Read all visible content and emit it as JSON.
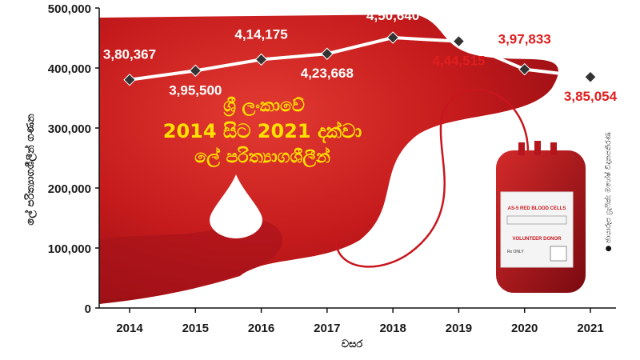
{
  "chart_data": {
    "type": "line",
    "title_lines": [
      "ශ්‍රී ලංකාවේ",
      "2014 සිට 2021 දක්වා",
      "ලේ පරිත්‍යාගශීලීන්"
    ],
    "xlabel": "වසර",
    "ylabel": "ලේ පරිත්‍යාගශීලීන් ගණන",
    "categories": [
      "2014",
      "2015",
      "2016",
      "2017",
      "2018",
      "2019",
      "2020",
      "2021"
    ],
    "values": [
      380367,
      395500,
      414175,
      423668,
      450640,
      444515,
      397833,
      385054
    ],
    "value_labels": [
      "3,80,367",
      "3,95,500",
      "4,14,175",
      "4,23,668",
      "4,50,640",
      "4,44,515",
      "3,97,833",
      "3,85,054"
    ],
    "ylim": [
      0,
      500000
    ],
    "yticks": [
      0,
      100000,
      200000,
      300000,
      400000,
      500000
    ],
    "ytick_labels": [
      "0",
      "100,000",
      "200,000",
      "300,000",
      "400,000",
      "500,000"
    ],
    "grid": false,
    "colors": {
      "line": "#ffffff",
      "marker": "#333333",
      "label_on_red": "#ffffff",
      "label_on_white": "#e01e1e",
      "headline": "#ffe000",
      "blood": "#b5101a"
    },
    "blood_bag_label": [
      "AS-5 RED BLOOD CELLS",
      "VOLUNTEER DONOR",
      "Rx ONLY"
    ],
    "credit": "● ඡායාරූප ග්‍රැෆික්: මහේෂ් විදානපතිරණ"
  }
}
